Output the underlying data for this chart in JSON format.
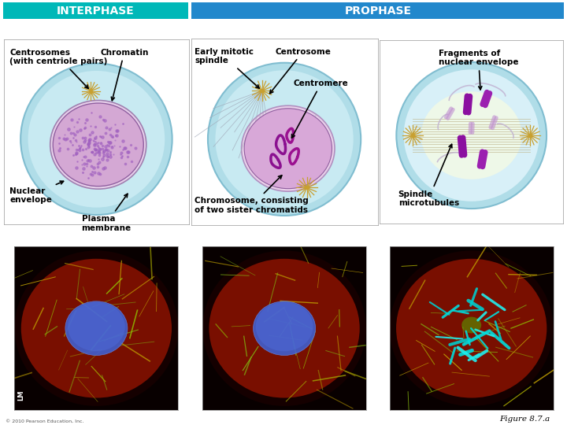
{
  "interphase_header": "INTERPHASE",
  "prophase_header": "PROPHASE",
  "interphase_header_bg": "#00B8B8",
  "prophase_header_bg": "#2288CC",
  "header_text_color": "#FFFFFF",
  "figure_label": "Figure 8.7.a",
  "copyright": "© 2010 Pearson Education, Inc.",
  "col1_labels": {
    "top_left": "Centrosomes\n(with centriole pairs)",
    "top_right": "Chromatin",
    "bottom_left": "Nuclear\nenvelope",
    "bottom_right": "Plasma\nmembrane"
  },
  "col2_labels": {
    "top_left": "Early mitotic\nspindle",
    "top_center": "Centrosome",
    "mid_center": "Centromere",
    "bottom": "Chromosome, consisting\nof two sister chromatids"
  },
  "col3_labels": {
    "top_right": "Fragments of\nnuclear envelope",
    "bottom_left": "Spindle\nmicrotubules"
  }
}
